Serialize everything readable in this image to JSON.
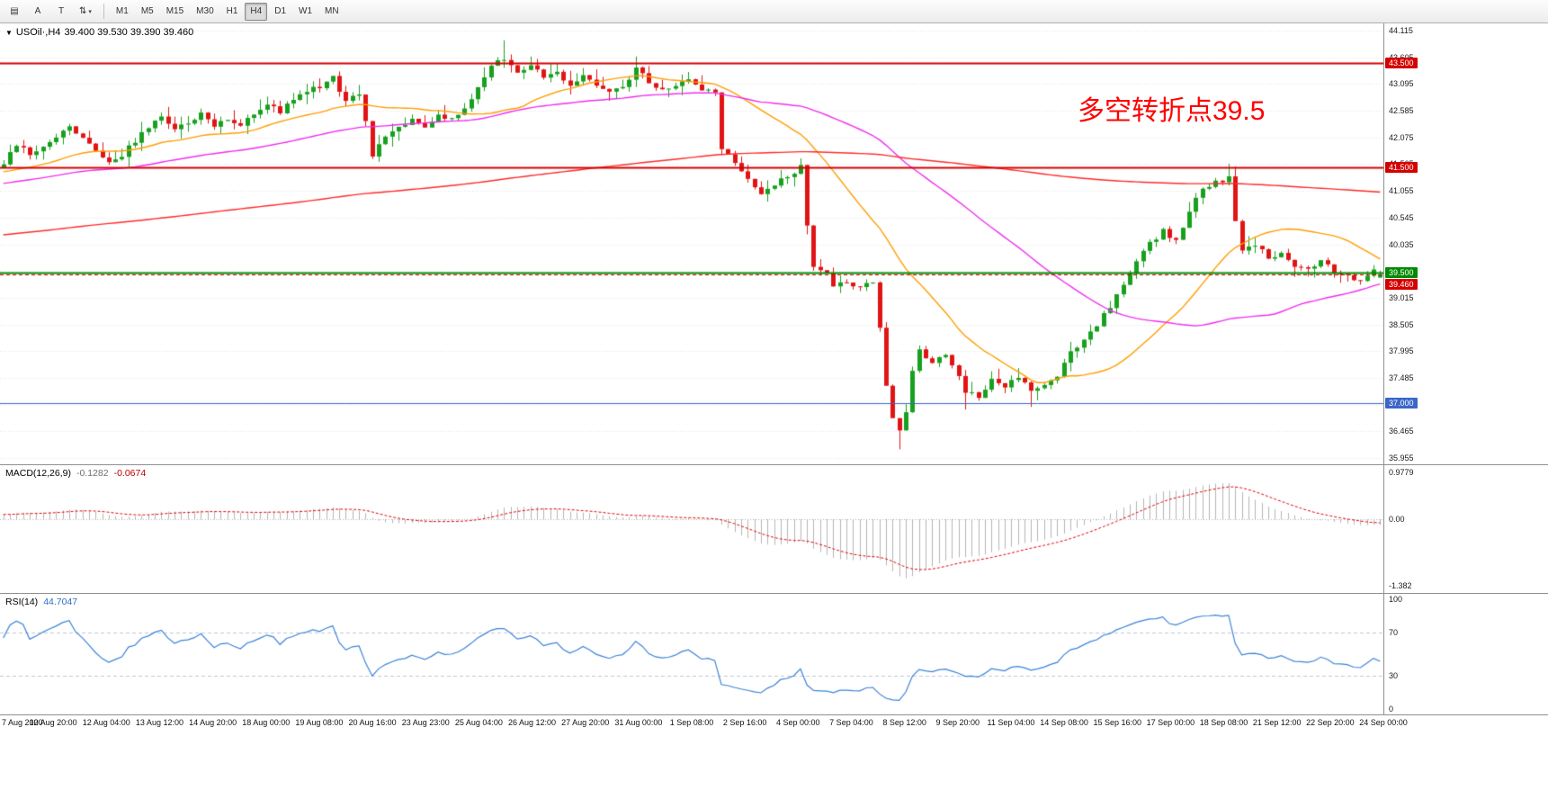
{
  "toolbar": {
    "tools": [
      {
        "name": "chart-templates-icon-button",
        "glyph": "▤"
      },
      {
        "name": "cursor-tool-button",
        "label": "A"
      },
      {
        "name": "text-tool-button",
        "label": "T"
      },
      {
        "name": "indicators-dropdown-button",
        "glyph": "⇅",
        "caret": "▾"
      }
    ],
    "timeframes": [
      "M1",
      "M5",
      "M15",
      "M30",
      "H1",
      "H4",
      "D1",
      "W1",
      "MN"
    ],
    "active_timeframe": "H4"
  },
  "chart": {
    "title_symbol": "USOil·,H4",
    "title_ohlc": "39.400 39.530 39.390 39.460",
    "annotation": "多空转折点39.5",
    "annotation_color": "#ff0000",
    "up_color": "#17a01e",
    "down_color": "#e01414",
    "price_range": [
      35.955,
      44.115
    ],
    "price_ticks": [
      "44.115",
      "43.605",
      "43.095",
      "42.585",
      "42.075",
      "41.565",
      "41.055",
      "40.545",
      "40.035",
      "39.525",
      "39.015",
      "38.505",
      "37.995",
      "37.485",
      "36.975",
      "36.465",
      "35.955"
    ],
    "horizontal_lines": [
      {
        "price": 43.5,
        "label": "43.500",
        "color": "#d40000",
        "width": 2
      },
      {
        "price": 41.5,
        "label": "41.500",
        "color": "#d40000",
        "width": 2
      },
      {
        "price": 39.5,
        "label": "39.500",
        "color": "#008a00",
        "width": 2
      },
      {
        "price": 37.0,
        "label": "37.000",
        "color": "#3a66c8",
        "width": 1
      }
    ],
    "current_price": {
      "value": 39.46,
      "label": "39.460",
      "color": "#d40000"
    }
  },
  "chart_data": {
    "type": "candlestick",
    "symbol": "USOil",
    "timeframe": "H4",
    "candle_count": 210,
    "final_close": 39.46,
    "last_candle": {
      "o": 39.4,
      "h": 39.53,
      "l": 39.39,
      "c": 39.46
    },
    "price_path": [
      [
        0,
        41.55
      ],
      [
        2,
        41.95
      ],
      [
        4,
        41.75
      ],
      [
        6,
        41.85
      ],
      [
        8,
        42.1
      ],
      [
        10,
        42.3
      ],
      [
        12,
        42.05
      ],
      [
        14,
        41.85
      ],
      [
        16,
        41.6
      ],
      [
        18,
        41.75
      ],
      [
        20,
        42.0
      ],
      [
        22,
        42.3
      ],
      [
        24,
        42.45
      ],
      [
        26,
        42.2
      ],
      [
        28,
        42.35
      ],
      [
        30,
        42.55
      ],
      [
        32,
        42.3
      ],
      [
        34,
        42.4
      ],
      [
        36,
        42.25
      ],
      [
        38,
        42.55
      ],
      [
        40,
        42.7
      ],
      [
        42,
        42.55
      ],
      [
        44,
        42.8
      ],
      [
        46,
        42.95
      ],
      [
        48,
        43.05
      ],
      [
        50,
        43.2
      ],
      [
        52,
        42.75
      ],
      [
        54,
        42.9
      ],
      [
        55,
        42.4
      ],
      [
        56,
        41.75
      ],
      [
        57,
        41.95
      ],
      [
        58,
        42.1
      ],
      [
        60,
        42.25
      ],
      [
        62,
        42.4
      ],
      [
        64,
        42.3
      ],
      [
        66,
        42.5
      ],
      [
        68,
        42.45
      ],
      [
        70,
        42.65
      ],
      [
        72,
        43.0
      ],
      [
        74,
        43.45
      ],
      [
        76,
        43.6
      ],
      [
        78,
        43.3
      ],
      [
        80,
        43.5
      ],
      [
        82,
        43.2
      ],
      [
        84,
        43.35
      ],
      [
        86,
        43.05
      ],
      [
        88,
        43.25
      ],
      [
        90,
        43.1
      ],
      [
        92,
        42.95
      ],
      [
        94,
        43.05
      ],
      [
        96,
        43.4
      ],
      [
        98,
        43.15
      ],
      [
        100,
        42.95
      ],
      [
        102,
        43.05
      ],
      [
        104,
        43.15
      ],
      [
        106,
        43.0
      ],
      [
        108,
        42.9
      ],
      [
        109,
        41.9
      ],
      [
        111,
        41.55
      ],
      [
        113,
        41.25
      ],
      [
        115,
        40.95
      ],
      [
        117,
        41.2
      ],
      [
        119,
        41.35
      ],
      [
        121,
        41.5
      ],
      [
        122,
        40.4
      ],
      [
        123,
        39.65
      ],
      [
        125,
        39.5
      ],
      [
        126,
        39.25
      ],
      [
        128,
        39.35
      ],
      [
        130,
        39.2
      ],
      [
        132,
        39.3
      ],
      [
        133,
        38.4
      ],
      [
        134,
        37.3
      ],
      [
        135,
        36.7
      ],
      [
        136,
        36.45
      ],
      [
        137,
        36.85
      ],
      [
        138,
        37.6
      ],
      [
        139,
        38.05
      ],
      [
        141,
        37.75
      ],
      [
        143,
        37.95
      ],
      [
        145,
        37.5
      ],
      [
        146,
        37.25
      ],
      [
        148,
        37.15
      ],
      [
        150,
        37.45
      ],
      [
        152,
        37.35
      ],
      [
        154,
        37.5
      ],
      [
        156,
        37.2
      ],
      [
        158,
        37.3
      ],
      [
        160,
        37.55
      ],
      [
        162,
        37.95
      ],
      [
        164,
        38.25
      ],
      [
        166,
        38.5
      ],
      [
        168,
        38.85
      ],
      [
        170,
        39.25
      ],
      [
        172,
        39.75
      ],
      [
        174,
        40.05
      ],
      [
        176,
        40.3
      ],
      [
        178,
        40.1
      ],
      [
        180,
        40.7
      ],
      [
        182,
        41.05
      ],
      [
        184,
        41.2
      ],
      [
        186,
        41.3
      ],
      [
        187,
        40.5
      ],
      [
        188,
        39.95
      ],
      [
        190,
        40.05
      ],
      [
        192,
        39.75
      ],
      [
        194,
        39.9
      ],
      [
        196,
        39.6
      ],
      [
        198,
        39.55
      ],
      [
        200,
        39.75
      ],
      [
        202,
        39.5
      ],
      [
        204,
        39.45
      ],
      [
        206,
        39.3
      ],
      [
        208,
        39.55
      ],
      [
        209,
        39.46
      ]
    ],
    "wick_overrides": [
      [
        76,
        "h",
        43.93
      ],
      [
        96,
        "h",
        43.62
      ],
      [
        121,
        "h",
        41.66
      ],
      [
        136,
        "l",
        36.12
      ],
      [
        146,
        "l",
        36.88
      ],
      [
        156,
        "l",
        36.93
      ],
      [
        186,
        "h",
        41.57
      ]
    ],
    "prehistory": {
      "bars": 240,
      "start_price": 38.6
    },
    "moving_averages": [
      {
        "name": "ma-fast-orange",
        "period": 24,
        "color": "#ff9d00"
      },
      {
        "name": "ma-mid-magenta",
        "period": 60,
        "color": "#f02ef0"
      },
      {
        "name": "ma-slow-red",
        "period": 220,
        "color": "#ff2a2a"
      }
    ],
    "x_labels": [
      "7 Aug 2020",
      "10 Aug 20:00",
      "12 Aug 04:00",
      "13 Aug 12:00",
      "14 Aug 20:00",
      "18 Aug 00:00",
      "19 Aug 08:00",
      "20 Aug 16:00",
      "23 Aug 23:00",
      "25 Aug 04:00",
      "26 Aug 12:00",
      "27 Aug 20:00",
      "31 Aug 00:00",
      "1 Sep 08:00",
      "2 Sep 16:00",
      "4 Sep 00:00",
      "7 Sep 04:00",
      "8 Sep 12:00",
      "9 Sep 20:00",
      "11 Sep 04:00",
      "14 Sep 08:00",
      "15 Sep 16:00",
      "17 Sep 00:00",
      "18 Sep 08:00",
      "21 Sep 12:00",
      "22 Sep 20:00",
      "24 Sep 00:00"
    ]
  },
  "macd": {
    "label_name": "MACD(12,26,9)",
    "value_main": "-0.1282",
    "value_signal": "-0.0674",
    "range": [
      -1.382,
      0.9779
    ],
    "axis_ticks": [
      {
        "v": 0.9779,
        "label": "0.9779"
      },
      {
        "v": 0,
        "label": "0.00"
      },
      {
        "v": -1.382,
        "label": "-1.382"
      }
    ],
    "histogram_color": "#b4b4b4",
    "signal_color": "#e00000"
  },
  "rsi": {
    "label_name": "RSI(14)",
    "value": "44.7047",
    "range": [
      0,
      100
    ],
    "levels": [
      30,
      70
    ],
    "axis_ticks": [
      {
        "v": 100,
        "label": "100"
      },
      {
        "v": 70,
        "label": "70"
      },
      {
        "v": 30,
        "label": "30"
      },
      {
        "v": 0,
        "label": "0"
      }
    ],
    "line_color": "#3b83d6",
    "level_color": "#bcc8da"
  }
}
